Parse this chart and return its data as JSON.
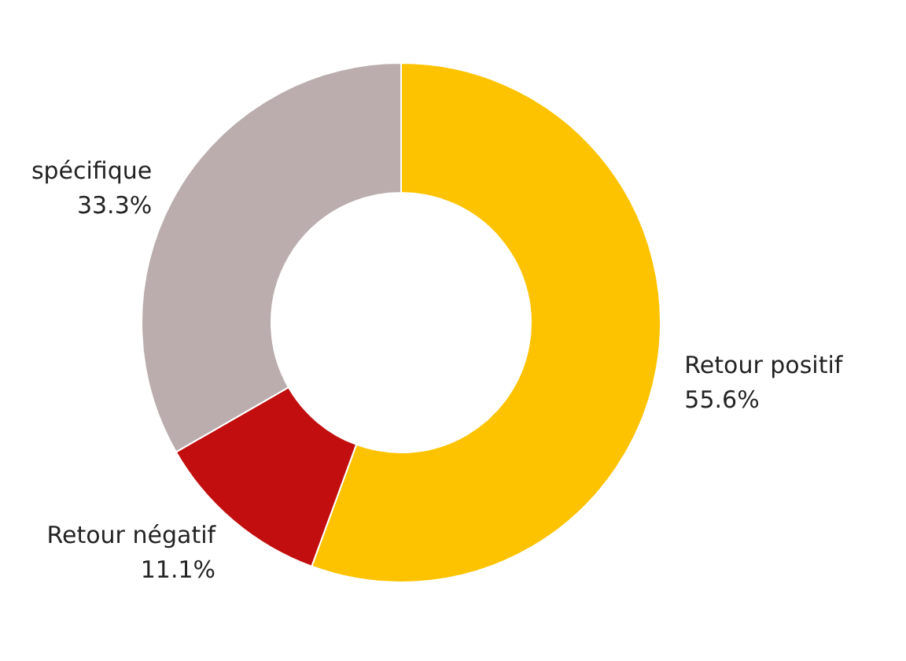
{
  "chart_data": {
    "type": "donut",
    "categories": [
      "Retour positif",
      "Retour négatif",
      "spécifique"
    ],
    "values": [
      55.6,
      11.1,
      33.3
    ],
    "colors": [
      "#fdc300",
      "#c20e0e",
      "#bbadad"
    ],
    "value_labels": [
      "55.6%",
      "11.1%",
      "33.3%"
    ],
    "legend": false
  }
}
